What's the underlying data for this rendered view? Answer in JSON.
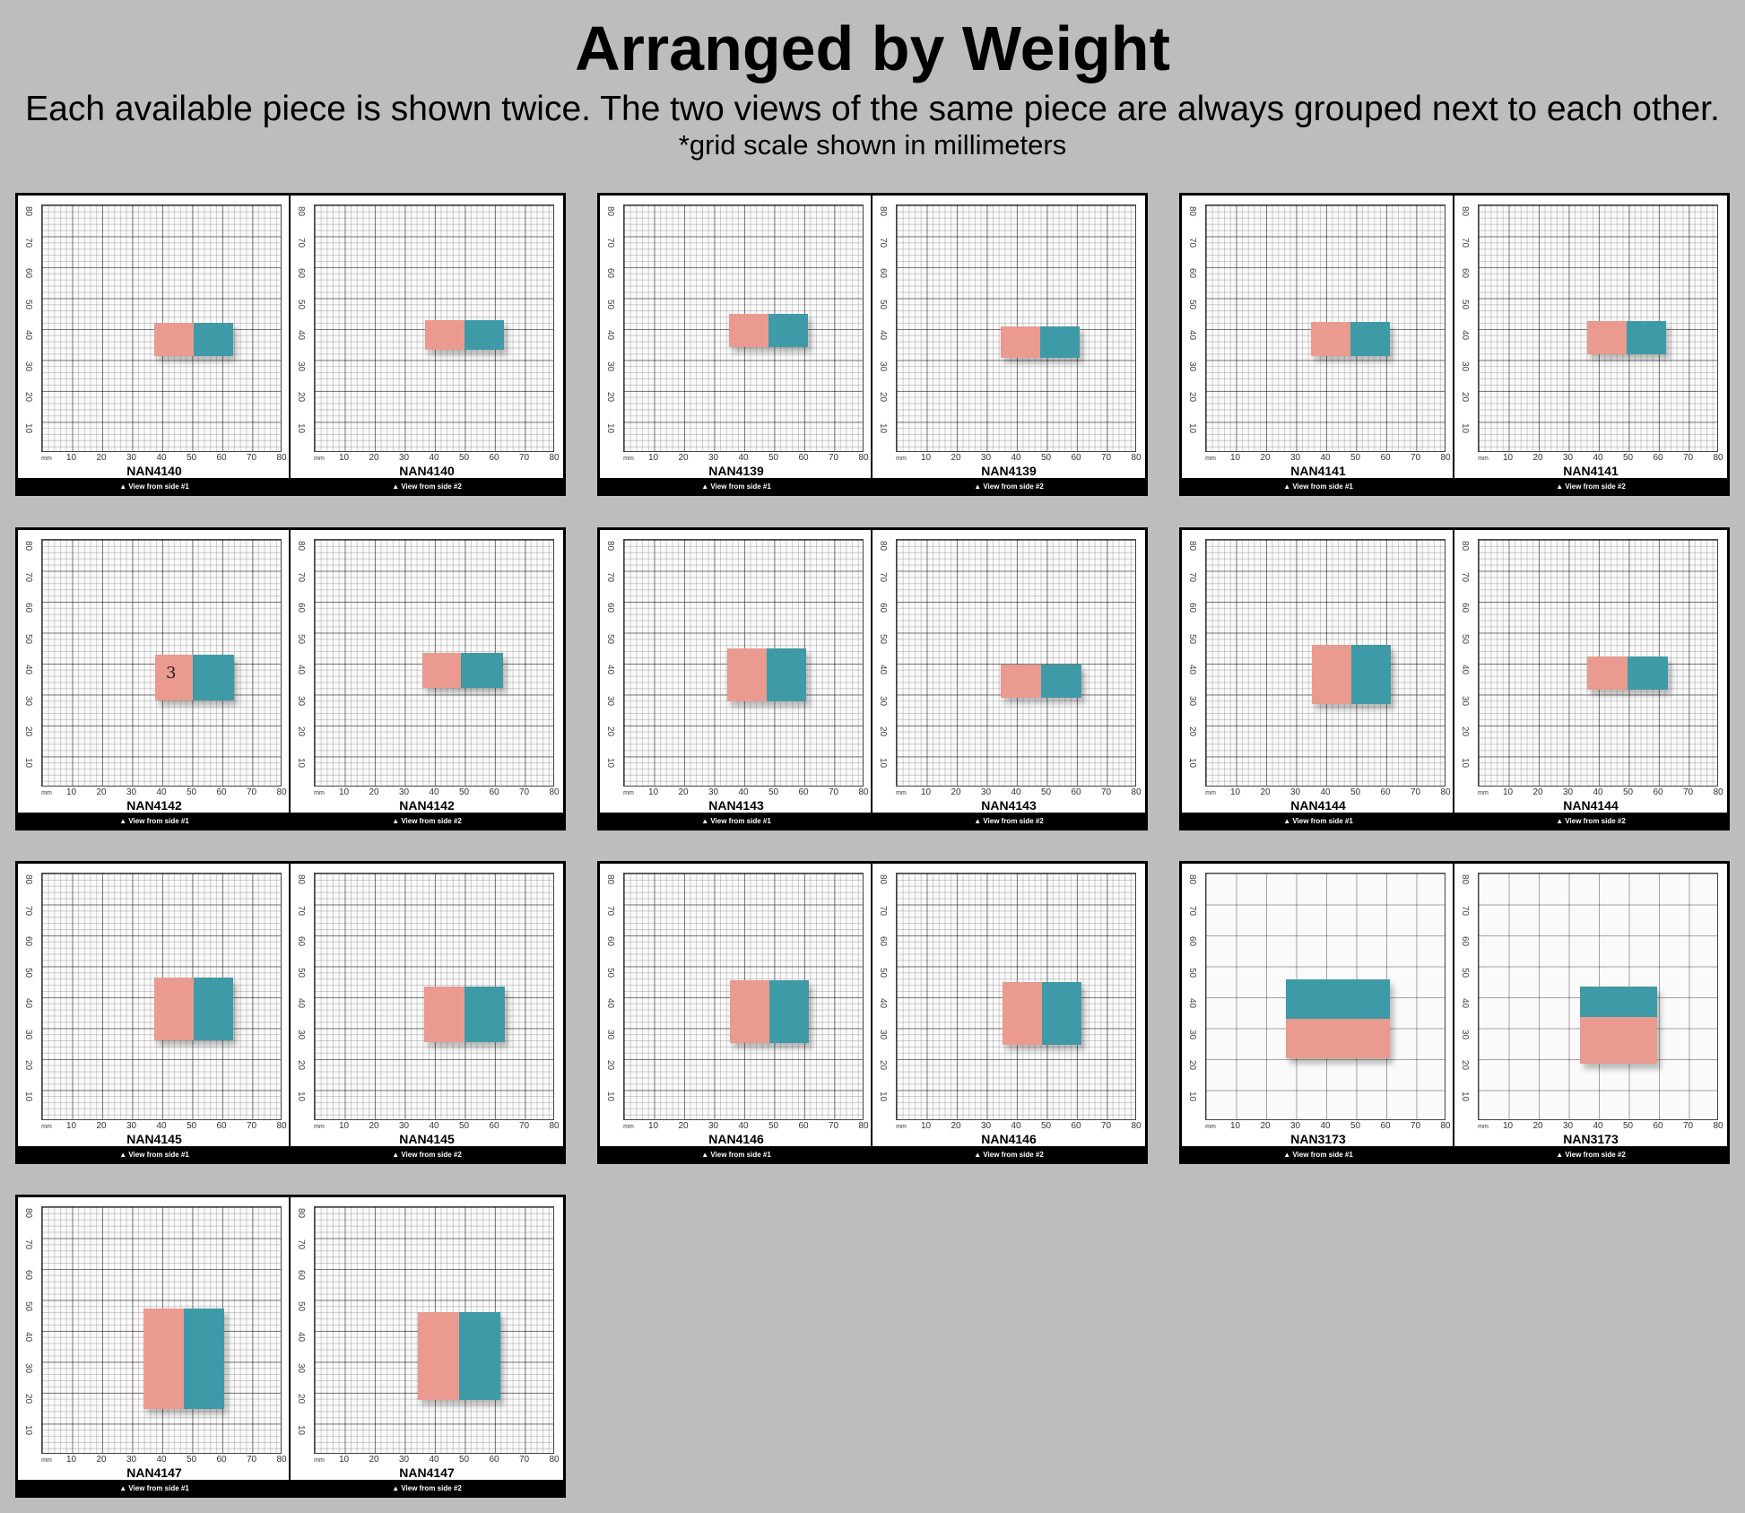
{
  "header": {
    "title": "Arranged by Weight",
    "subtitle": "Each available piece is shown twice. The two views of the same piece are always grouped next to each other.",
    "note": "*grid scale shown in millimeters"
  },
  "scale": {
    "unit": "mm",
    "x_ticks": [
      "10",
      "20",
      "30",
      "40",
      "50",
      "60",
      "70",
      "80"
    ],
    "y_ticks": [
      "80",
      "70",
      "60",
      "50",
      "40",
      "30",
      "20",
      "10"
    ]
  },
  "side_labels": {
    "side1": "▲ View from side #1",
    "side2": "▲ View from side #2"
  },
  "colors": {
    "background": "#bdbdbd",
    "pink": "#ea9a8f",
    "teal": "#3e9aa6",
    "card_frame": "#000000"
  },
  "cards": [
    {
      "name": "NAN4140"
    },
    {
      "name": "NAN4139"
    },
    {
      "name": "NAN4141"
    },
    {
      "name": "NAN4142",
      "mark": "3"
    },
    {
      "name": "NAN4143"
    },
    {
      "name": "NAN4144"
    },
    {
      "name": "NAN4145"
    },
    {
      "name": "NAN4146"
    },
    {
      "name": "NAN3173"
    },
    {
      "name": "NAN4147"
    }
  ]
}
